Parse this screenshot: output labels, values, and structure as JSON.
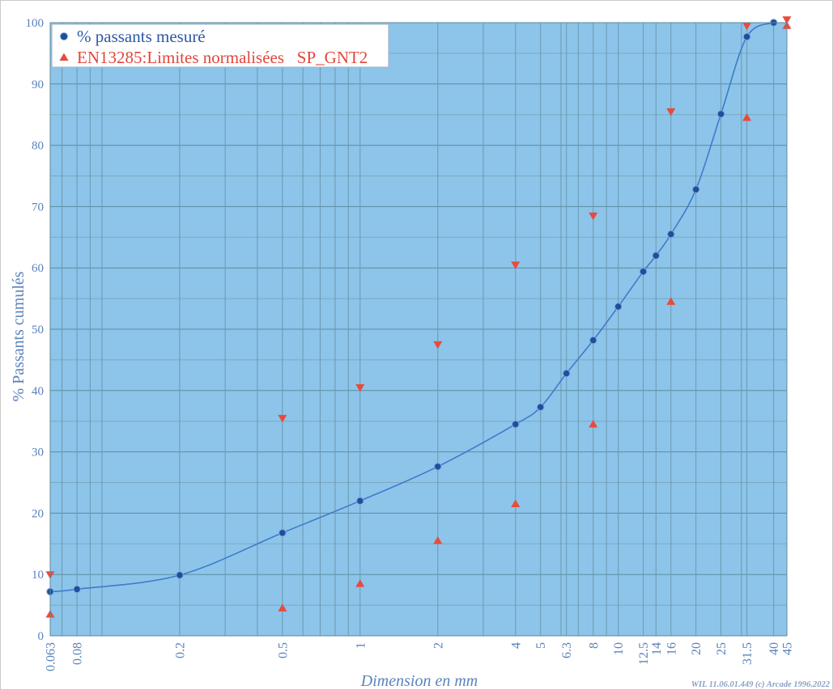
{
  "chart_data": {
    "type": "line",
    "xlabel": "Dimension en mm",
    "ylabel": "% Passants cumulés",
    "x_scale": "log",
    "xlim": [
      0.063,
      45
    ],
    "ylim": [
      0,
      100
    ],
    "x_ticks": [
      0.063,
      0.08,
      0.2,
      0.5,
      1,
      2,
      4,
      5,
      6.3,
      8,
      10,
      12.5,
      14,
      16,
      20,
      25,
      31.5,
      40,
      45
    ],
    "x_tick_labels": [
      "0.063",
      "0.08",
      "0.2",
      "0.5",
      "1",
      "2",
      "4",
      "5",
      "6.3",
      "8",
      "10",
      "12.5",
      "14",
      "16",
      "20",
      "25",
      "31.5",
      "40",
      "45"
    ],
    "y_ticks": [
      0,
      10,
      20,
      30,
      40,
      50,
      60,
      70,
      80,
      90,
      100
    ],
    "y_tick_labels": [
      "0",
      "10",
      "20",
      "30",
      "40",
      "50",
      "60",
      "70",
      "80",
      "90",
      "100"
    ],
    "grid": true,
    "legend_position": "top-left",
    "plot_background": "#8dc4ea",
    "series": [
      {
        "name": "% passants mesuré",
        "type": "line",
        "marker": "circle",
        "color": "#3d7cc9",
        "marker_color": "#1e4f9c",
        "x": [
          0.063,
          0.08,
          0.2,
          0.5,
          1,
          2,
          4,
          5,
          6.3,
          8,
          10,
          12.5,
          14,
          16,
          20,
          25,
          31.5,
          40
        ],
        "y": [
          7.2,
          7.6,
          9.9,
          16.8,
          22.0,
          27.6,
          34.5,
          37.3,
          42.8,
          48.2,
          53.7,
          59.4,
          62.0,
          65.5,
          72.8,
          85.1,
          97.7,
          100
        ]
      },
      {
        "name": "EN13285:Limites normalisées   SP_GNT2",
        "type": "scatter",
        "upper_marker": "triangle-down",
        "lower_marker": "triangle-up",
        "color": "#e84b3c",
        "x": [
          0.063,
          0.5,
          1,
          2,
          4,
          8,
          16,
          31.5,
          45
        ],
        "upper": [
          10,
          35.5,
          40.5,
          47.5,
          60.5,
          68.5,
          85.5,
          99.5,
          100.5
        ],
        "lower": [
          3.5,
          4.5,
          8.5,
          15.5,
          21.5,
          34.5,
          54.5,
          84.5,
          99.5
        ]
      }
    ]
  },
  "footer": "WIL 11.06.01.449 (c) Arcade 1996.2022"
}
